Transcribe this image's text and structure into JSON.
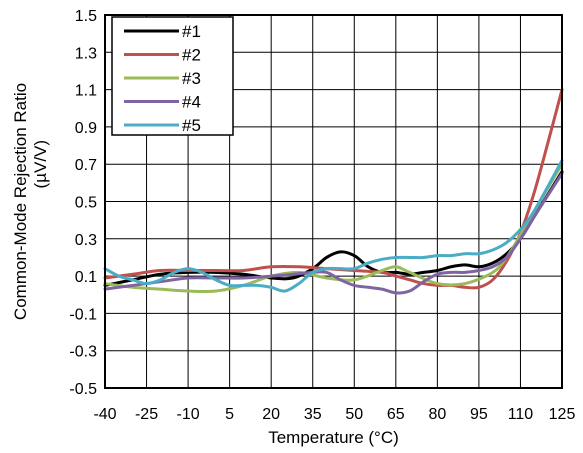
{
  "chart_data": {
    "type": "line",
    "xlabel": "Temperature (°C)",
    "ylabel_line1": "Common-Mode Rejection Ratio",
    "ylabel_line2": "(µV/V)",
    "xlim": [
      -40,
      125
    ],
    "ylim": [
      -0.5,
      1.5
    ],
    "x_ticks": [
      "-40",
      "-25",
      "-10",
      "5",
      "20",
      "35",
      "50",
      "65",
      "80",
      "95",
      "110",
      "125"
    ],
    "y_ticks": [
      "1.5",
      "1.3",
      "1.1",
      "0.9",
      "0.7",
      "0.5",
      "0.3",
      "0.1",
      "-0.1",
      "-0.3",
      "-0.5"
    ],
    "grid": true,
    "legend_position": "top-left",
    "series": [
      {
        "name": "#1",
        "color": "#000000",
        "x": [
          -40,
          -30,
          -20,
          -10,
          0,
          10,
          20,
          28,
          35,
          40,
          45,
          50,
          55,
          60,
          65,
          70,
          75,
          80,
          85,
          90,
          95,
          100,
          105,
          110,
          115,
          125
        ],
        "y": [
          0.05,
          0.08,
          0.11,
          0.12,
          0.12,
          0.11,
          0.09,
          0.09,
          0.14,
          0.2,
          0.23,
          0.21,
          0.15,
          0.12,
          0.12,
          0.11,
          0.12,
          0.13,
          0.15,
          0.16,
          0.15,
          0.17,
          0.22,
          0.3,
          0.42,
          0.66
        ]
      },
      {
        "name": "#2",
        "color": "#C0504D",
        "x": [
          -40,
          -30,
          -20,
          -10,
          0,
          10,
          20,
          30,
          40,
          50,
          60,
          65,
          70,
          75,
          80,
          85,
          90,
          95,
          100,
          105,
          110,
          115,
          120,
          125
        ],
        "y": [
          0.09,
          0.11,
          0.13,
          0.13,
          0.13,
          0.13,
          0.15,
          0.15,
          0.14,
          0.13,
          0.12,
          0.1,
          0.08,
          0.06,
          0.05,
          0.05,
          0.04,
          0.04,
          0.08,
          0.18,
          0.33,
          0.55,
          0.82,
          1.1
        ]
      },
      {
        "name": "#3",
        "color": "#9BBB59",
        "x": [
          -40,
          -30,
          -20,
          -10,
          0,
          10,
          20,
          30,
          40,
          50,
          60,
          65,
          70,
          80,
          90,
          100,
          105,
          110,
          115,
          125
        ],
        "y": [
          0.06,
          0.04,
          0.03,
          0.02,
          0.02,
          0.05,
          0.1,
          0.12,
          0.09,
          0.08,
          0.13,
          0.15,
          0.12,
          0.06,
          0.06,
          0.12,
          0.2,
          0.32,
          0.45,
          0.7
        ]
      },
      {
        "name": "#4",
        "color": "#8064A2",
        "x": [
          -40,
          -30,
          -20,
          -10,
          0,
          10,
          20,
          28,
          35,
          40,
          45,
          50,
          55,
          60,
          65,
          70,
          75,
          80,
          85,
          90,
          95,
          100,
          105,
          110,
          115,
          125
        ],
        "y": [
          0.03,
          0.05,
          0.07,
          0.09,
          0.09,
          0.09,
          0.1,
          0.11,
          0.12,
          0.12,
          0.08,
          0.05,
          0.04,
          0.03,
          0.01,
          0.02,
          0.07,
          0.11,
          0.12,
          0.12,
          0.13,
          0.15,
          0.2,
          0.3,
          0.42,
          0.65
        ]
      },
      {
        "name": "#5",
        "color": "#4BACC6",
        "x": [
          -40,
          -35,
          -30,
          -25,
          -20,
          -15,
          -10,
          -5,
          0,
          5,
          10,
          15,
          20,
          25,
          30,
          35,
          40,
          45,
          50,
          55,
          60,
          65,
          70,
          75,
          80,
          85,
          90,
          95,
          100,
          105,
          110,
          115,
          125
        ],
        "y": [
          0.14,
          0.1,
          0.08,
          0.06,
          0.08,
          0.12,
          0.14,
          0.12,
          0.08,
          0.05,
          0.05,
          0.05,
          0.04,
          0.02,
          0.06,
          0.12,
          0.14,
          0.14,
          0.14,
          0.17,
          0.19,
          0.2,
          0.2,
          0.2,
          0.21,
          0.21,
          0.22,
          0.22,
          0.24,
          0.28,
          0.35,
          0.45,
          0.72
        ]
      }
    ]
  }
}
